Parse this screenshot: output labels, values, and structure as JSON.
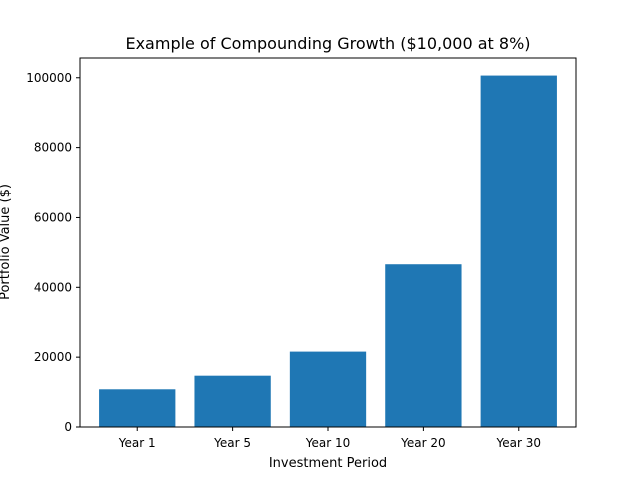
{
  "chart_data": {
    "type": "bar",
    "title": "Example of Compounding Growth ($10,000 at 8%)",
    "xlabel": "Investment Period",
    "ylabel": "Portfolio Value ($)",
    "categories": [
      "Year 1",
      "Year 5",
      "Year 10",
      "Year 20",
      "Year 30"
    ],
    "values": [
      10800,
      14693,
      21589,
      46610,
      100627
    ],
    "ylim": [
      0,
      105660
    ],
    "yticks": [
      0,
      20000,
      40000,
      60000,
      80000,
      100000
    ],
    "grid": false,
    "bar_color": "#1f77b4"
  }
}
